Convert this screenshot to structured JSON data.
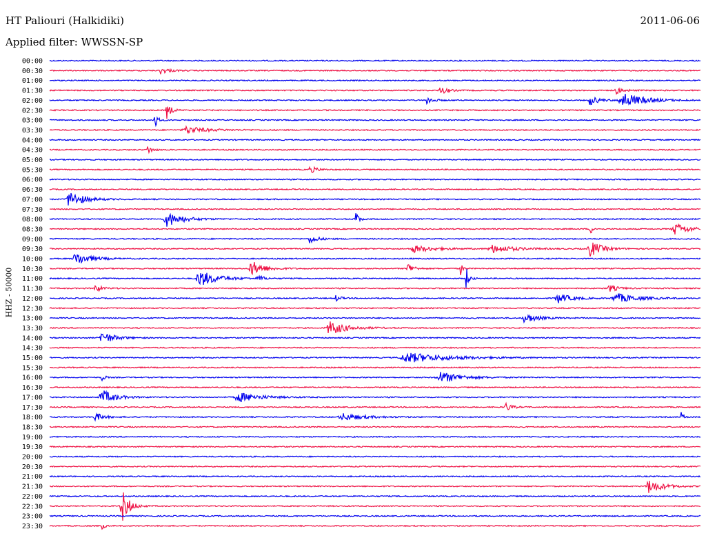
{
  "header": {
    "station": "HT Paliouri (Halkidiki)",
    "date": "2011-06-06",
    "filter": "Applied filter: WWSSN-SP"
  },
  "colors": {
    "even": "#0000ee",
    "odd": "#ee1144"
  },
  "chart_data": {
    "type": "line",
    "title": "HT Paliouri (Halkidiki)",
    "ylabel": "HHZ - 50000",
    "xlabel": "",
    "rows": [
      "00:00",
      "00:30",
      "01:00",
      "01:30",
      "02:00",
      "02:30",
      "03:00",
      "03:30",
      "04:00",
      "04:30",
      "05:00",
      "05:30",
      "06:00",
      "06:30",
      "07:00",
      "07:30",
      "08:00",
      "08:30",
      "09:00",
      "09:30",
      "10:00",
      "10:30",
      "11:00",
      "11:30",
      "12:00",
      "12:30",
      "13:00",
      "13:30",
      "14:00",
      "14:30",
      "15:00",
      "15:30",
      "16:00",
      "16:30",
      "17:00",
      "17:30",
      "18:00",
      "18:30",
      "19:00",
      "19:30",
      "20:00",
      "20:30",
      "21:00",
      "21:30",
      "22:00",
      "22:30",
      "23:00",
      "23:30"
    ],
    "bursts": [
      {
        "row": 1,
        "x": 0.17,
        "amp": 5,
        "w": 0.012
      },
      {
        "row": 3,
        "x": 0.6,
        "amp": 6,
        "w": 0.01
      },
      {
        "row": 3,
        "x": 0.87,
        "amp": 5,
        "w": 0.01
      },
      {
        "row": 4,
        "x": 0.58,
        "amp": 6,
        "w": 0.008
      },
      {
        "row": 4,
        "x": 0.83,
        "amp": 7,
        "w": 0.012
      },
      {
        "row": 4,
        "x": 0.88,
        "amp": 11,
        "w": 0.03
      },
      {
        "row": 5,
        "x": 0.18,
        "amp": 12,
        "w": 0.006
      },
      {
        "row": 6,
        "x": 0.16,
        "amp": 18,
        "w": 0.004
      },
      {
        "row": 7,
        "x": 0.21,
        "amp": 5,
        "w": 0.03
      },
      {
        "row": 9,
        "x": 0.15,
        "amp": 7,
        "w": 0.006
      },
      {
        "row": 11,
        "x": 0.4,
        "amp": 5,
        "w": 0.01
      },
      {
        "row": 14,
        "x": 0.03,
        "amp": 12,
        "w": 0.02
      },
      {
        "row": 16,
        "x": 0.18,
        "amp": 11,
        "w": 0.022
      },
      {
        "row": 16,
        "x": 0.47,
        "amp": 14,
        "w": 0.004
      },
      {
        "row": 17,
        "x": 0.83,
        "amp": 9,
        "w": 0.004
      },
      {
        "row": 17,
        "x": 0.96,
        "amp": 9,
        "w": 0.02
      },
      {
        "row": 18,
        "x": 0.4,
        "amp": 7,
        "w": 0.01
      },
      {
        "row": 19,
        "x": 0.56,
        "amp": 5,
        "w": 0.03
      },
      {
        "row": 19,
        "x": 0.68,
        "amp": 6,
        "w": 0.03
      },
      {
        "row": 19,
        "x": 0.83,
        "amp": 12,
        "w": 0.016
      },
      {
        "row": 20,
        "x": 0.04,
        "amp": 10,
        "w": 0.02
      },
      {
        "row": 21,
        "x": 0.31,
        "amp": 11,
        "w": 0.018
      },
      {
        "row": 21,
        "x": 0.55,
        "amp": 9,
        "w": 0.008
      },
      {
        "row": 21,
        "x": 0.63,
        "amp": 14,
        "w": 0.003
      },
      {
        "row": 22,
        "x": 0.23,
        "amp": 12,
        "w": 0.025
      },
      {
        "row": 22,
        "x": 0.32,
        "amp": 7,
        "w": 0.006
      },
      {
        "row": 22,
        "x": 0.64,
        "amp": 16,
        "w": 0.004
      },
      {
        "row": 23,
        "x": 0.07,
        "amp": 5,
        "w": 0.01
      },
      {
        "row": 23,
        "x": 0.86,
        "amp": 5,
        "w": 0.012
      },
      {
        "row": 24,
        "x": 0.44,
        "amp": 5,
        "w": 0.006
      },
      {
        "row": 24,
        "x": 0.78,
        "amp": 7,
        "w": 0.02
      },
      {
        "row": 24,
        "x": 0.87,
        "amp": 7,
        "w": 0.03
      },
      {
        "row": 26,
        "x": 0.73,
        "amp": 7,
        "w": 0.018
      },
      {
        "row": 27,
        "x": 0.43,
        "amp": 10,
        "w": 0.025
      },
      {
        "row": 28,
        "x": 0.08,
        "amp": 9,
        "w": 0.018
      },
      {
        "row": 30,
        "x": 0.55,
        "amp": 7,
        "w": 0.06
      },
      {
        "row": 32,
        "x": 0.08,
        "amp": 6,
        "w": 0.004
      },
      {
        "row": 32,
        "x": 0.6,
        "amp": 8,
        "w": 0.03
      },
      {
        "row": 34,
        "x": 0.08,
        "amp": 11,
        "w": 0.018
      },
      {
        "row": 34,
        "x": 0.29,
        "amp": 7,
        "w": 0.03
      },
      {
        "row": 35,
        "x": 0.7,
        "amp": 7,
        "w": 0.008
      },
      {
        "row": 36,
        "x": 0.07,
        "amp": 6,
        "w": 0.012
      },
      {
        "row": 36,
        "x": 0.45,
        "amp": 5,
        "w": 0.03
      },
      {
        "row": 36,
        "x": 0.97,
        "amp": 7,
        "w": 0.004
      },
      {
        "row": 43,
        "x": 0.92,
        "amp": 10,
        "w": 0.02
      },
      {
        "row": 45,
        "x": 0.11,
        "amp": 28,
        "w": 0.01
      },
      {
        "row": 47,
        "x": 0.08,
        "amp": 8,
        "w": 0.003
      }
    ]
  }
}
